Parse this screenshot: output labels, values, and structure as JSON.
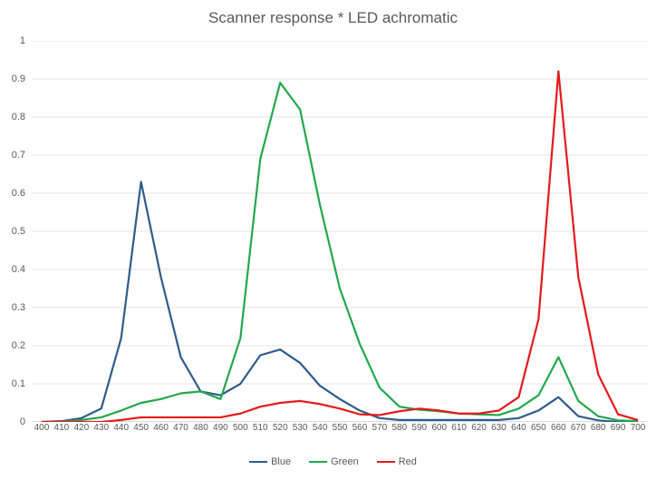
{
  "chart": {
    "type": "line",
    "title": "Scanner response * LED achromatic",
    "title_fontsize": 17,
    "title_color": "#595959",
    "background_color": "#ffffff",
    "plot_border_color": "#d9d9d9",
    "grid_color": "#e6e6e6",
    "axis_label_color": "#595959",
    "axis_fontsize": 11,
    "x_axis_fontsize": 10,
    "xlim": [
      400,
      700
    ],
    "x_tick_step": 10,
    "x_ticks": [
      400,
      410,
      420,
      430,
      440,
      450,
      460,
      470,
      480,
      490,
      500,
      510,
      520,
      530,
      540,
      550,
      560,
      570,
      580,
      590,
      600,
      610,
      620,
      630,
      640,
      650,
      660,
      670,
      680,
      690,
      700
    ],
    "ylim": [
      0,
      1
    ],
    "y_tick_step": 0.1,
    "y_ticks": [
      0,
      0.1,
      0.2,
      0.3,
      0.4,
      0.5,
      0.6,
      0.7,
      0.8,
      0.9,
      1
    ],
    "line_width": 2.2,
    "legend_position": "bottom",
    "series": [
      {
        "name": "Blue",
        "color": "#2e5c8a",
        "x": [
          400,
          410,
          420,
          430,
          440,
          450,
          460,
          470,
          480,
          490,
          500,
          510,
          520,
          530,
          540,
          550,
          560,
          570,
          580,
          590,
          600,
          610,
          620,
          630,
          640,
          650,
          660,
          670,
          680,
          690,
          700
        ],
        "y": [
          0.0,
          0.002,
          0.01,
          0.035,
          0.22,
          0.63,
          0.38,
          0.17,
          0.08,
          0.07,
          0.1,
          0.175,
          0.19,
          0.155,
          0.095,
          0.06,
          0.03,
          0.01,
          0.005,
          0.005,
          0.005,
          0.005,
          0.005,
          0.005,
          0.01,
          0.03,
          0.065,
          0.015,
          0.004,
          0.0,
          0.0
        ]
      },
      {
        "name": "Green",
        "color": "#21a84c",
        "x": [
          400,
          410,
          420,
          430,
          440,
          450,
          460,
          470,
          480,
          490,
          500,
          510,
          520,
          530,
          540,
          550,
          560,
          570,
          580,
          590,
          600,
          610,
          620,
          630,
          640,
          650,
          660,
          670,
          680,
          690,
          700
        ],
        "y": [
          0.0,
          0.0,
          0.005,
          0.012,
          0.03,
          0.05,
          0.06,
          0.075,
          0.08,
          0.06,
          0.22,
          0.69,
          0.89,
          0.82,
          0.57,
          0.35,
          0.205,
          0.09,
          0.04,
          0.032,
          0.028,
          0.022,
          0.02,
          0.018,
          0.035,
          0.07,
          0.17,
          0.055,
          0.015,
          0.004,
          0.002
        ]
      },
      {
        "name": "Red",
        "color": "#e41a1c",
        "x": [
          400,
          410,
          420,
          430,
          440,
          450,
          460,
          470,
          480,
          490,
          500,
          510,
          520,
          530,
          540,
          550,
          560,
          570,
          580,
          590,
          600,
          610,
          620,
          630,
          640,
          650,
          660,
          670,
          680,
          690,
          700
        ],
        "y": [
          0.0,
          0.0,
          0.0,
          0.0,
          0.005,
          0.012,
          0.012,
          0.012,
          0.012,
          0.012,
          0.022,
          0.04,
          0.05,
          0.055,
          0.047,
          0.035,
          0.02,
          0.018,
          0.028,
          0.035,
          0.03,
          0.022,
          0.022,
          0.03,
          0.065,
          0.27,
          0.92,
          0.38,
          0.125,
          0.02,
          0.005
        ]
      }
    ]
  }
}
